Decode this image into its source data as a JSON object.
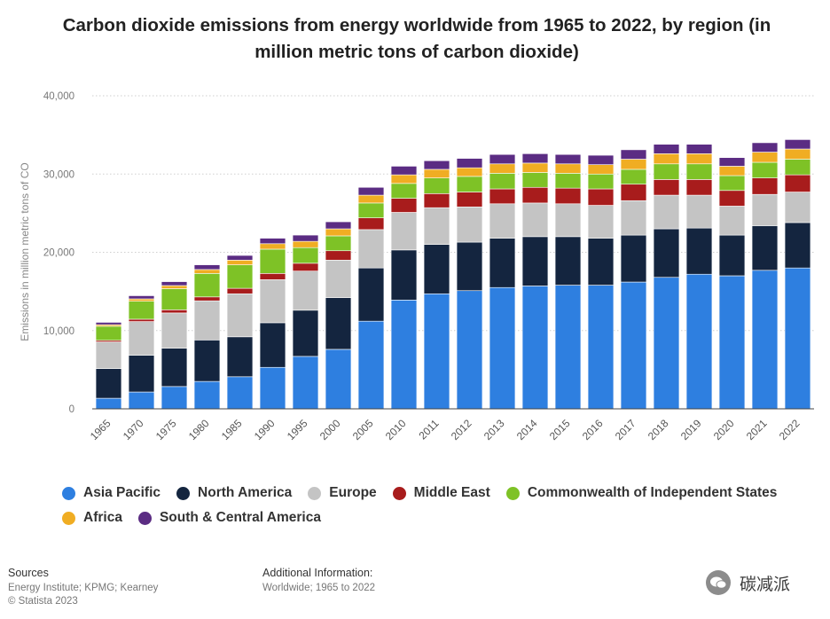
{
  "title": "Carbon dioxide emissions from energy worldwide from 1965 to 2022, by region (in million metric tons of carbon dioxide)",
  "chart_data": {
    "type": "bar",
    "stacked": true,
    "categories": [
      "1965",
      "1970",
      "1975",
      "1980",
      "1985",
      "1990",
      "1995",
      "2000",
      "2005",
      "2010",
      "2011",
      "2012",
      "2013",
      "2014",
      "2015",
      "2016",
      "2017",
      "2018",
      "2019",
      "2020",
      "2021",
      "2022"
    ],
    "ylabel": "Emissions in million metric tons of CO",
    "ylim": [
      0,
      40000
    ],
    "yticks": [
      0,
      10000,
      20000,
      30000,
      40000
    ],
    "ytick_labels": [
      "0",
      "10,000",
      "20,000",
      "30,000",
      "40,000"
    ],
    "grid": true,
    "legend_position": "bottom",
    "series": [
      {
        "name": "Asia Pacific",
        "color": "#2e7fe0",
        "values": [
          1350,
          2150,
          2850,
          3500,
          4100,
          5300,
          6700,
          7600,
          11200,
          13900,
          14700,
          15100,
          15500,
          15700,
          15800,
          15800,
          16200,
          16800,
          17200,
          17000,
          17700,
          18000
        ]
      },
      {
        "name": "North America",
        "color": "#14253f",
        "values": [
          3800,
          4700,
          4900,
          5300,
          5100,
          5700,
          5900,
          6600,
          6800,
          6400,
          6300,
          6200,
          6300,
          6300,
          6200,
          6000,
          6000,
          6200,
          5900,
          5200,
          5700,
          5800
        ]
      },
      {
        "name": "Europe",
        "color": "#c4c4c4",
        "values": [
          3400,
          4300,
          4500,
          5000,
          5500,
          5500,
          5000,
          4800,
          4900,
          4800,
          4700,
          4500,
          4400,
          4300,
          4200,
          4200,
          4400,
          4300,
          4200,
          3700,
          4000,
          3900
        ]
      },
      {
        "name": "Middle East",
        "color": "#a81c1c",
        "values": [
          200,
          300,
          400,
          500,
          700,
          800,
          1000,
          1200,
          1500,
          1800,
          1800,
          1900,
          1900,
          2000,
          2000,
          2100,
          2100,
          2000,
          2000,
          2000,
          2100,
          2200
        ]
      },
      {
        "name": "Commonwealth of Independent States",
        "color": "#7ec226",
        "values": [
          1800,
          2300,
          2700,
          3000,
          3000,
          3100,
          2000,
          1900,
          1900,
          1900,
          2000,
          2000,
          2000,
          1900,
          1900,
          1900,
          1900,
          2000,
          2000,
          1900,
          2000,
          2000
        ]
      },
      {
        "name": "Africa",
        "color": "#f0ad23",
        "values": [
          200,
          300,
          400,
          500,
          600,
          700,
          800,
          900,
          1000,
          1100,
          1100,
          1100,
          1200,
          1200,
          1200,
          1200,
          1300,
          1300,
          1300,
          1200,
          1300,
          1300
        ]
      },
      {
        "name": "South & Central America",
        "color": "#5b2c83",
        "values": [
          300,
          400,
          500,
          600,
          600,
          700,
          800,
          900,
          1000,
          1100,
          1100,
          1200,
          1200,
          1200,
          1200,
          1200,
          1200,
          1200,
          1200,
          1100,
          1200,
          1200
        ]
      }
    ]
  },
  "footer": {
    "sources_label": "Sources",
    "sources_text": "Energy Institute; KPMG; Kearney",
    "copyright": "© Statista 2023",
    "additional_label": "Additional Information:",
    "additional_text": "Worldwide; 1965 to 2022"
  },
  "watermark": {
    "text": "碳减派",
    "icon": "wechat-icon"
  }
}
